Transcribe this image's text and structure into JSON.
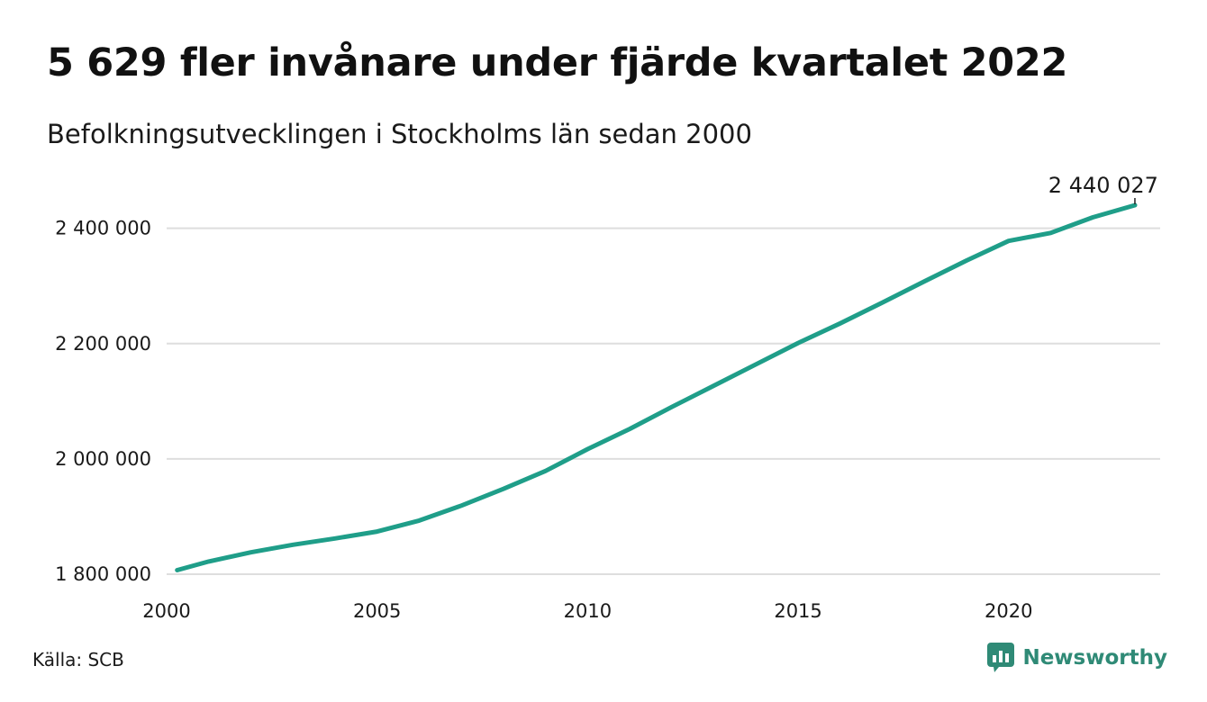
{
  "header": {
    "title": "5 629 fler invånare under fjärde kvartalet 2022",
    "subtitle": "Befolkningsutvecklingen i Stockholms län sedan 2000"
  },
  "footer": {
    "source": "Källa: SCB",
    "brand": "Newsworthy",
    "brand_icon": "newsworthy-logo-icon"
  },
  "colors": {
    "line": "#1f9e89",
    "grid": "#dedede",
    "brand": "#2f8a76"
  },
  "chart_data": {
    "type": "line",
    "title": "5 629 fler invånare under fjärde kvartalet 2022",
    "subtitle": "Befolkningsutvecklingen i Stockholms län sedan 2000",
    "xlabel": "",
    "ylabel": "",
    "xlim": [
      2000,
      2023.6
    ],
    "ylim": [
      1800000,
      2440027
    ],
    "x_ticks": [
      2000,
      2005,
      2010,
      2015,
      2020
    ],
    "x_tick_labels": [
      "2000",
      "2005",
      "2010",
      "2015",
      "2020"
    ],
    "y_ticks": [
      1800000,
      2000000,
      2200000,
      2400000
    ],
    "y_tick_labels": [
      "1 800 000",
      "2 000 000",
      "2 200 000",
      "2 400 000"
    ],
    "grid": "horizontal",
    "legend": "none",
    "end_label": "2 440 027",
    "series": [
      {
        "x": [
          2000.25,
          2001.0,
          2002.0,
          2003.0,
          2004.0,
          2005.0,
          2006.0,
          2007.0,
          2008.0,
          2009.0,
          2010.0,
          2011.0,
          2012.0,
          2013.0,
          2014.0,
          2015.0,
          2016.0,
          2017.0,
          2018.0,
          2019.0,
          2020.0,
          2021.0,
          2022.0,
          2023.0
        ],
        "y": [
          1807000,
          1822000,
          1838000,
          1851000,
          1862000,
          1874000,
          1893000,
          1919000,
          1948000,
          1979000,
          2017000,
          2052000,
          2090000,
          2127000,
          2164000,
          2201000,
          2235000,
          2271000,
          2308000,
          2344000,
          2378000,
          2392000,
          2419000,
          2440027
        ]
      }
    ]
  }
}
